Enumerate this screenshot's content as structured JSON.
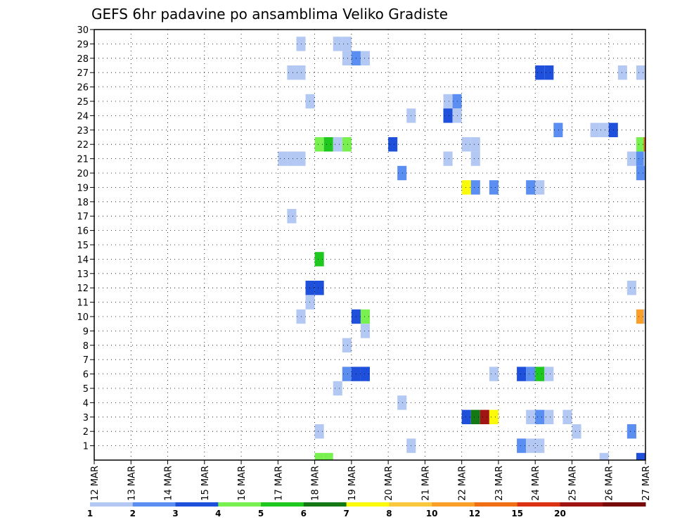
{
  "chart_data": {
    "type": "heatmap",
    "title": "GEFS 6hr padavine po ansamblima Veliko Gradiste",
    "xlabel": "",
    "ylabel": "",
    "x_tick_labels": [
      "12 MAR",
      "13 MAR",
      "14 MAR",
      "15 MAR",
      "16 MAR",
      "17 MAR",
      "18 MAR",
      "19 MAR",
      "20 MAR",
      "21 MAR",
      "22 MAR",
      "23 MAR",
      "24 MAR",
      "25 MAR",
      "26 MAR",
      "27 MAR"
    ],
    "x_unit": "day index (0 = 12 MAR, 15 = 27 MAR), 6-hour steps",
    "xlim": [
      0,
      15
    ],
    "y_tick_labels": [
      "1",
      "2",
      "3",
      "4",
      "5",
      "6",
      "7",
      "8",
      "9",
      "10",
      "11",
      "12",
      "13",
      "14",
      "15",
      "16",
      "17",
      "18",
      "19",
      "20",
      "21",
      "22",
      "23",
      "24",
      "25",
      "26",
      "27",
      "28",
      "29",
      "30"
    ],
    "ylim": [
      0,
      30
    ],
    "grid": true,
    "legend": {
      "placement": "bottom",
      "labels": [
        "1",
        "2",
        "3",
        "4",
        "5",
        "6",
        "7",
        "8",
        "10",
        "12",
        "15",
        "20"
      ],
      "colors": [
        "#b4c8f4",
        "#5a8ef0",
        "#1e50dc",
        "#78f050",
        "#1ec81e",
        "#147814",
        "#fafa0a",
        "#fac83c",
        "#faa028",
        "#f06e14",
        "#dc3214",
        "#a01414",
        "#780a0a"
      ]
    },
    "cells": [
      {
        "member": 30,
        "t": 5.5,
        "c": 0
      },
      {
        "member": 30,
        "t": 6.5,
        "c": 0
      },
      {
        "member": 30,
        "t": 6.75,
        "c": 0
      },
      {
        "member": 29,
        "t": 6.75,
        "c": 0
      },
      {
        "member": 29,
        "t": 7,
        "c": 1
      },
      {
        "member": 29,
        "t": 7.25,
        "c": 0
      },
      {
        "member": 28,
        "t": 5.25,
        "c": 0
      },
      {
        "member": 28,
        "t": 5.5,
        "c": 0
      },
      {
        "member": 28,
        "t": 12,
        "c": 2
      },
      {
        "member": 28,
        "t": 12.25,
        "c": 2
      },
      {
        "member": 28,
        "t": 14.25,
        "c": 0
      },
      {
        "member": 28,
        "t": 14.75,
        "c": 0
      },
      {
        "member": 26,
        "t": 5.75,
        "c": 0
      },
      {
        "member": 26,
        "t": 9.5,
        "c": 0
      },
      {
        "member": 26,
        "t": 9.75,
        "c": 1
      },
      {
        "member": 25,
        "t": 8.5,
        "c": 0
      },
      {
        "member": 25,
        "t": 9.5,
        "c": 2
      },
      {
        "member": 25,
        "t": 9.75,
        "c": 0
      },
      {
        "member": 24,
        "t": 12.5,
        "c": 1
      },
      {
        "member": 24,
        "t": 13.5,
        "c": 0
      },
      {
        "member": 24,
        "t": 13.75,
        "c": 0
      },
      {
        "member": 24,
        "t": 14,
        "c": 2
      },
      {
        "member": 23,
        "t": 6,
        "c": 3
      },
      {
        "member": 23,
        "t": 6.25,
        "c": 4
      },
      {
        "member": 23,
        "t": 6.5,
        "c": 0
      },
      {
        "member": 23,
        "t": 6.75,
        "c": 3
      },
      {
        "member": 23,
        "t": 8,
        "c": 2
      },
      {
        "member": 23,
        "t": 10,
        "c": 0
      },
      {
        "member": 23,
        "t": 10.25,
        "c": 0
      },
      {
        "member": 23,
        "t": 14.75,
        "c": 3
      },
      {
        "member": 23,
        "t": 14.95,
        "c": 9
      },
      {
        "member": 22,
        "t": 5,
        "c": 0
      },
      {
        "member": 22,
        "t": 5.25,
        "c": 0
      },
      {
        "member": 22,
        "t": 5.5,
        "c": 0
      },
      {
        "member": 22,
        "t": 9.5,
        "c": 0
      },
      {
        "member": 22,
        "t": 10.25,
        "c": 0
      },
      {
        "member": 22,
        "t": 14.5,
        "c": 0
      },
      {
        "member": 22,
        "t": 14.75,
        "c": 1
      },
      {
        "member": 22,
        "t": 14.95,
        "c": 0
      },
      {
        "member": 21,
        "t": 8.25,
        "c": 1
      },
      {
        "member": 21,
        "t": 14.75,
        "c": 1
      },
      {
        "member": 20,
        "t": 10,
        "c": 6
      },
      {
        "member": 20,
        "t": 10.25,
        "c": 1
      },
      {
        "member": 20,
        "t": 10.75,
        "c": 1
      },
      {
        "member": 20,
        "t": 11.75,
        "c": 1
      },
      {
        "member": 20,
        "t": 12,
        "c": 0
      },
      {
        "member": 18,
        "t": 5.25,
        "c": 0
      },
      {
        "member": 15,
        "t": 6,
        "c": 4
      },
      {
        "member": 13,
        "t": 5.75,
        "c": 2
      },
      {
        "member": 13,
        "t": 6,
        "c": 2
      },
      {
        "member": 13,
        "t": 14.5,
        "c": 0
      },
      {
        "member": 12,
        "t": 5.75,
        "c": 0
      },
      {
        "member": 11,
        "t": 5.5,
        "c": 0
      },
      {
        "member": 11,
        "t": 7,
        "c": 2
      },
      {
        "member": 11,
        "t": 7.25,
        "c": 3
      },
      {
        "member": 11,
        "t": 14.75,
        "c": 8
      },
      {
        "member": 11,
        "t": 14.95,
        "c": 0
      },
      {
        "member": 10,
        "t": 7.25,
        "c": 0
      },
      {
        "member": 9,
        "t": 6.75,
        "c": 0
      },
      {
        "member": 7,
        "t": 6.75,
        "c": 1
      },
      {
        "member": 7,
        "t": 7,
        "c": 2
      },
      {
        "member": 7,
        "t": 7.25,
        "c": 2
      },
      {
        "member": 7,
        "t": 10.75,
        "c": 0
      },
      {
        "member": 7,
        "t": 11.5,
        "c": 2
      },
      {
        "member": 7,
        "t": 11.75,
        "c": 1
      },
      {
        "member": 7,
        "t": 12,
        "c": 4
      },
      {
        "member": 7,
        "t": 12.25,
        "c": 0
      },
      {
        "member": 6,
        "t": 6.5,
        "c": 0
      },
      {
        "member": 5,
        "t": 8.25,
        "c": 0
      },
      {
        "member": 4,
        "t": 10,
        "c": 2
      },
      {
        "member": 4,
        "t": 10.25,
        "c": 5
      },
      {
        "member": 4,
        "t": 10.5,
        "c": 11
      },
      {
        "member": 4,
        "t": 10.75,
        "c": 6
      },
      {
        "member": 4,
        "t": 11.75,
        "c": 0
      },
      {
        "member": 4,
        "t": 12,
        "c": 1
      },
      {
        "member": 4,
        "t": 12.25,
        "c": 0
      },
      {
        "member": 4,
        "t": 12.75,
        "c": 0
      },
      {
        "member": 3,
        "t": 6,
        "c": 0
      },
      {
        "member": 3,
        "t": 13,
        "c": 0
      },
      {
        "member": 3,
        "t": 14.5,
        "c": 1
      },
      {
        "member": 2,
        "t": 8.5,
        "c": 0
      },
      {
        "member": 2,
        "t": 11.5,
        "c": 1
      },
      {
        "member": 2,
        "t": 11.75,
        "c": 0
      },
      {
        "member": 2,
        "t": 12,
        "c": 0
      },
      {
        "member": 1,
        "t": 6,
        "c": 3
      },
      {
        "member": 1,
        "t": 6.25,
        "c": 3
      },
      {
        "member": 1,
        "t": 13.75,
        "c": 0
      },
      {
        "member": 1,
        "t": 14.75,
        "c": 2
      }
    ]
  }
}
